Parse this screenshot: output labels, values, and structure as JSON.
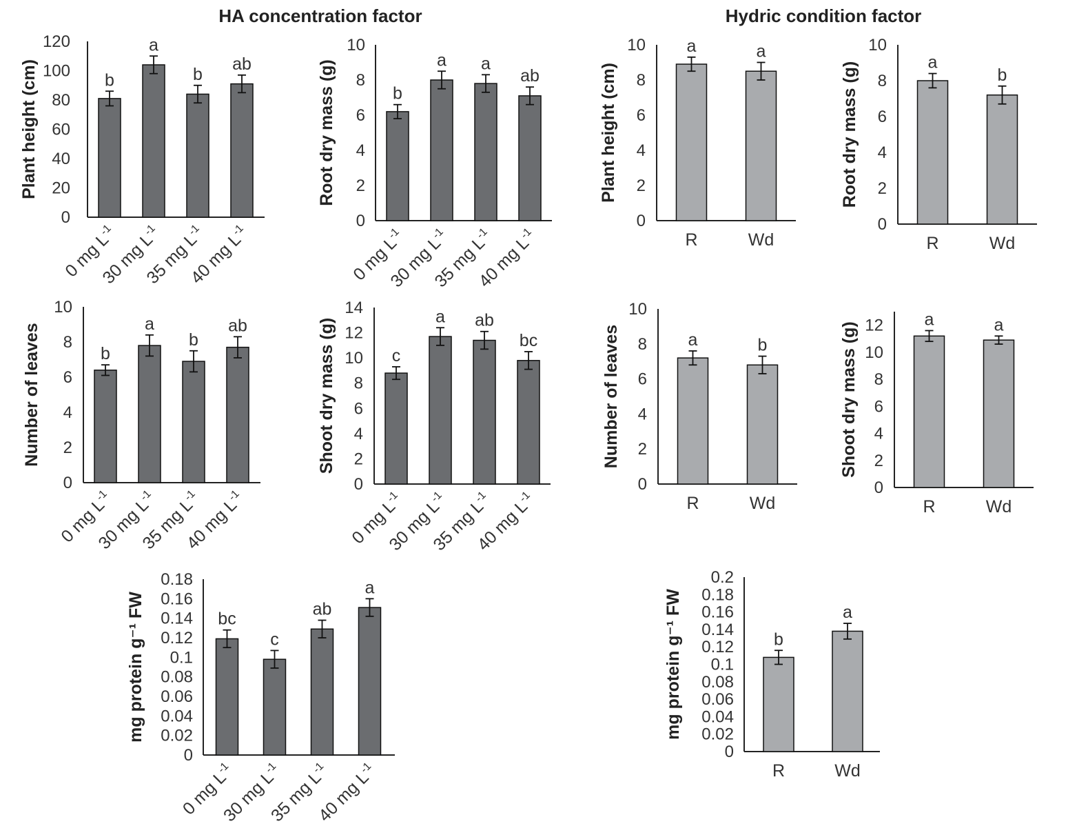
{
  "sections": {
    "left_title": "HA concentration factor",
    "right_title": "Hydric condition factor"
  },
  "colors": {
    "ha_bar": "#6b6d70",
    "hydric_bar": "#a9abae",
    "axis": "#222222",
    "text": "#333333"
  },
  "chart_data": [
    {
      "id": "ha-plant-height",
      "type": "bar",
      "title": "",
      "ylabel": "Plant height (cm)",
      "xlabel": "",
      "categories": [
        "0 mg L-1",
        "30 mg L-1",
        "35 mg L-1",
        "40 mg L-1"
      ],
      "values": [
        81,
        104,
        84,
        91
      ],
      "errors": [
        5,
        6,
        6,
        6
      ],
      "letters": [
        "b",
        "a",
        "b",
        "ab"
      ],
      "ylim": [
        0,
        120
      ],
      "yticks": [
        0,
        20,
        40,
        60,
        80,
        100,
        120
      ],
      "grid": false
    },
    {
      "id": "ha-root-dry-mass",
      "type": "bar",
      "title": "",
      "ylabel": "Root dry mass (g)",
      "xlabel": "",
      "categories": [
        "0 mg L-1",
        "30 mg L-1",
        "35 mg L-1",
        "40 mg L-1"
      ],
      "values": [
        6.2,
        8.0,
        7.8,
        7.1
      ],
      "errors": [
        0.4,
        0.5,
        0.5,
        0.5
      ],
      "letters": [
        "b",
        "a",
        "a",
        "ab"
      ],
      "ylim": [
        0,
        10
      ],
      "yticks": [
        0,
        2,
        4,
        6,
        8,
        10
      ],
      "grid": false
    },
    {
      "id": "hyd-plant-height",
      "type": "bar",
      "title": "",
      "ylabel": "Plant height (cm)",
      "xlabel": "",
      "categories": [
        "R",
        "Wd"
      ],
      "values": [
        8.9,
        8.5
      ],
      "errors": [
        0.4,
        0.5
      ],
      "letters": [
        "a",
        "a"
      ],
      "ylim": [
        0,
        10
      ],
      "yticks": [
        0,
        2,
        4,
        6,
        8,
        10
      ],
      "grid": false
    },
    {
      "id": "hyd-root-dry-mass",
      "type": "bar",
      "title": "",
      "ylabel": "Root dry mass (g)",
      "xlabel": "",
      "categories": [
        "R",
        "Wd"
      ],
      "values": [
        8.0,
        7.2
      ],
      "errors": [
        0.4,
        0.5
      ],
      "letters": [
        "a",
        "b"
      ],
      "ylim": [
        0,
        10
      ],
      "yticks": [
        0,
        2,
        4,
        6,
        8,
        10
      ],
      "grid": false
    },
    {
      "id": "ha-number-of-leaves",
      "type": "bar",
      "title": "",
      "ylabel": "Number of leaves",
      "xlabel": "",
      "categories": [
        "0 mg L-1",
        "30 mg L-1",
        "35 mg L-1",
        "40 mg L-1"
      ],
      "values": [
        6.4,
        7.8,
        6.9,
        7.7
      ],
      "errors": [
        0.3,
        0.6,
        0.6,
        0.6
      ],
      "letters": [
        "b",
        "a",
        "b",
        "ab"
      ],
      "ylim": [
        0,
        10
      ],
      "yticks": [
        0,
        2,
        4,
        6,
        8,
        10
      ],
      "grid": false
    },
    {
      "id": "ha-shoot-dry-mass",
      "type": "bar",
      "title": "",
      "ylabel": "Shoot dry mass (g)",
      "xlabel": "",
      "categories": [
        "0 mg L-1",
        "30 mg L-1",
        "35 mg L-1",
        "40 mg L-1"
      ],
      "values": [
        8.8,
        11.7,
        11.4,
        9.8
      ],
      "errors": [
        0.5,
        0.7,
        0.7,
        0.7
      ],
      "letters": [
        "c",
        "a",
        "ab",
        "bc"
      ],
      "ylim": [
        0,
        14
      ],
      "yticks": [
        0,
        2,
        4,
        6,
        8,
        10,
        12,
        14
      ],
      "grid": false
    },
    {
      "id": "hyd-number-of-leaves",
      "type": "bar",
      "title": "",
      "ylabel": "Number of leaves",
      "xlabel": "",
      "categories": [
        "R",
        "Wd"
      ],
      "values": [
        7.2,
        6.8
      ],
      "errors": [
        0.4,
        0.5
      ],
      "letters": [
        "a",
        "b"
      ],
      "ylim": [
        0,
        10
      ],
      "yticks": [
        0,
        2,
        4,
        6,
        8,
        10
      ],
      "grid": false
    },
    {
      "id": "hyd-shoot-dry-mass",
      "type": "bar",
      "title": "",
      "ylabel": "Shoot dry mass (g)",
      "xlabel": "",
      "categories": [
        "R",
        "Wd"
      ],
      "values": [
        11.2,
        10.9
      ],
      "errors": [
        0.4,
        0.3
      ],
      "letters": [
        "a",
        "a"
      ],
      "ylim": [
        0,
        13
      ],
      "yticks": [
        0,
        2,
        4,
        6,
        8,
        10,
        12
      ],
      "grid": false
    },
    {
      "id": "ha-protein",
      "type": "bar",
      "title": "",
      "ylabel": "mg protein g⁻¹ FW",
      "xlabel": "",
      "categories": [
        "0 mg L-1",
        "30 mg L-1",
        "35 mg L-1",
        "40 mg L-1"
      ],
      "values": [
        0.119,
        0.098,
        0.129,
        0.151
      ],
      "errors": [
        0.009,
        0.009,
        0.009,
        0.009
      ],
      "letters": [
        "bc",
        "c",
        "ab",
        "a"
      ],
      "ylim": [
        0,
        0.18
      ],
      "yticks": [
        0,
        0.02,
        0.04,
        0.06,
        0.08,
        0.1,
        0.12,
        0.14,
        0.16,
        0.18
      ],
      "grid": false
    },
    {
      "id": "hyd-protein",
      "type": "bar",
      "title": "",
      "ylabel": "mg protein g⁻¹ FW",
      "xlabel": "",
      "categories": [
        "R",
        "Wd"
      ],
      "values": [
        0.108,
        0.138
      ],
      "errors": [
        0.008,
        0.009
      ],
      "letters": [
        "b",
        "a"
      ],
      "ylim": [
        0,
        0.2
      ],
      "yticks": [
        0,
        0.02,
        0.04,
        0.06,
        0.08,
        0.1,
        0.12,
        0.14,
        0.16,
        0.18,
        0.2
      ],
      "grid": false
    }
  ]
}
